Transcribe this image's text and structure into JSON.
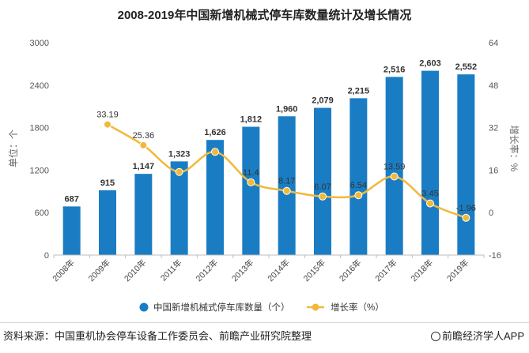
{
  "chart_data": {
    "type": "bar+line",
    "title": "2008-2019年中国新增机械式停车库数量统计及增长情况",
    "categories": [
      "2008年",
      "2009年",
      "2010年",
      "2011年",
      "2012年",
      "2013年",
      "2014年",
      "2015年",
      "2016年",
      "2017年",
      "2018年",
      "2019年"
    ],
    "series": [
      {
        "name": "中国新增机械式停车库数量（个）",
        "type": "bar",
        "axis": "left",
        "color": "#1a7dc4",
        "values": [
          687,
          915,
          1147,
          1323,
          1626,
          1812,
          1960,
          2079,
          2215,
          2516,
          2603,
          2552
        ],
        "labels": [
          "687",
          "915",
          "1,147",
          "1,323",
          "1,626",
          "1,812",
          "1,960",
          "2,079",
          "2,215",
          "2,516",
          "2,603",
          "2,552"
        ]
      },
      {
        "name": "增长率（%）",
        "type": "line",
        "axis": "right",
        "color": "#f0b93a",
        "values": [
          null,
          33.19,
          25.36,
          15.3,
          22.9,
          11.4,
          8.17,
          6.07,
          6.54,
          13.59,
          3.45,
          -1.96
        ],
        "labels": [
          "",
          "33.19",
          "25.36",
          "",
          "",
          "11.4",
          "8.17",
          "6.07",
          "6.54",
          "13.59",
          "3.45",
          "-1.96"
        ]
      }
    ],
    "ylabel": "单位：个",
    "ylabel_right": "增长率：%",
    "ylim": [
      0,
      3000
    ],
    "yticks": [
      0,
      600,
      1200,
      1800,
      2400,
      3000
    ],
    "ylim_right": [
      -16,
      64
    ],
    "yticks_right": [
      -16,
      0,
      16,
      32,
      48,
      64
    ],
    "legend_position": "bottom"
  },
  "footer": {
    "source": "资料来源：中国重机协会停车设备工作委员会、前瞻产业研究院整理",
    "brand": "前瞻经济学人APP"
  }
}
